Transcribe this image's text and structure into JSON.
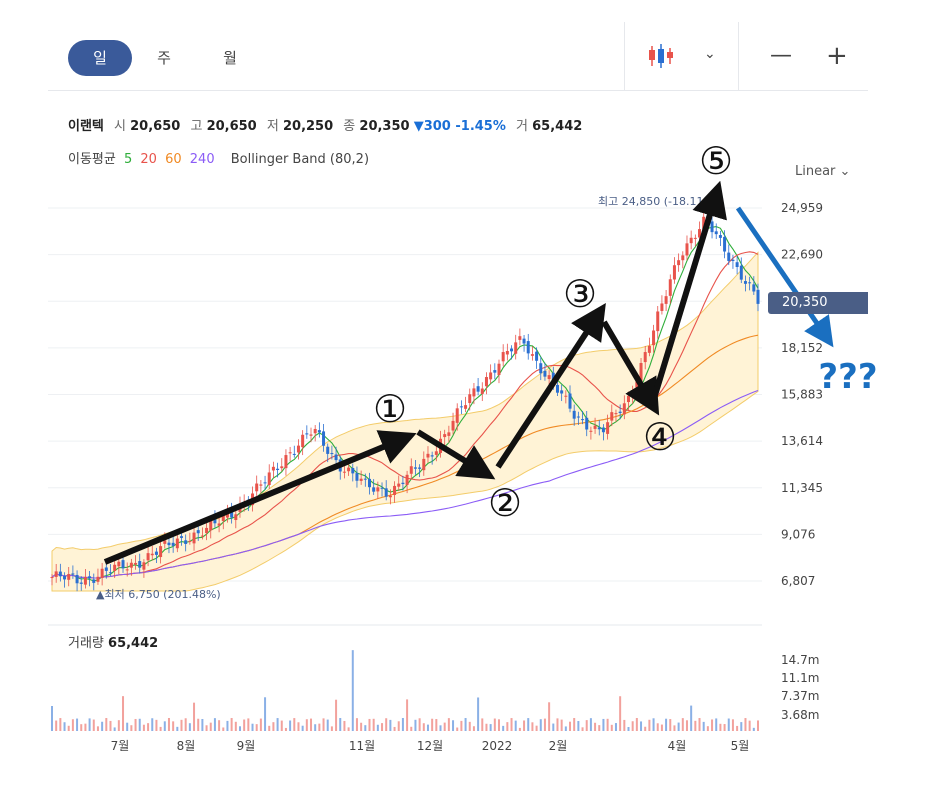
{
  "toolbar": {
    "tabs": [
      "일",
      "주",
      "월"
    ],
    "active_tab": "일",
    "chart_type_icon": "candlestick-icon",
    "minus_icon": "—",
    "plus_icon": "+"
  },
  "info": {
    "name": "이랜텍",
    "open_label": "시",
    "open": "20,650",
    "high_label": "고",
    "high": "20,650",
    "low_label": "저",
    "low": "20,250",
    "close_label": "종",
    "close": "20,350",
    "change": "▼300 -1.45%",
    "volume_label": "거",
    "volume": "65,442"
  },
  "indicators": {
    "ma_label": "이동평균",
    "ma_periods": [
      "5",
      "20",
      "60",
      "240"
    ],
    "ma_colors": [
      "#2fae3b",
      "#e8534b",
      "#f08a24",
      "#8b5cf6"
    ],
    "bollinger": "Bollinger Band (80,2)"
  },
  "scale_mode": "Linear",
  "current_price_tag": "20,350",
  "annotations": {
    "max_label": "최고 24,850 (-18.11%)",
    "min_label": "▲최저 6,750 (201.48%)",
    "waves": [
      "①",
      "②",
      "③",
      "④",
      "⑤"
    ],
    "question": "???"
  },
  "volume_panel": {
    "label": "거래량",
    "value": "65,442",
    "ticks": [
      "14.7m",
      "11.1m",
      "7.37m",
      "3.68m"
    ]
  },
  "colors": {
    "up": "#e8534b",
    "down": "#2a6fd1",
    "band_fill": "#fff3d6",
    "arrow_black": "#111111",
    "arrow_blue": "#1a6fc0"
  },
  "chart_data": {
    "type": "candlestick",
    "y_ticks": [
      "24,959",
      "22,690",
      "20,350",
      "18,152",
      "15,883",
      "13,614",
      "11,345",
      "9,076",
      "6,807"
    ],
    "ylim": [
      6807,
      24959
    ],
    "x_ticks": [
      "7월",
      "8월",
      "9월",
      "11월",
      "12월",
      "2022",
      "2월",
      "4월",
      "5월"
    ],
    "close_series_approx": [
      7000,
      6850,
      7200,
      7600,
      8200,
      8900,
      9300,
      10300,
      11400,
      13000,
      14100,
      12500,
      11400,
      11200,
      12300,
      13900,
      15800,
      17300,
      18600,
      16600,
      14900,
      14000,
      15600,
      18900,
      22800,
      24300,
      22500,
      20350
    ],
    "max": {
      "value": 24850,
      "text": "최고 24,850 (-18.11%)"
    },
    "min": {
      "value": 6750,
      "text": "최저 6,750 (201.48%)"
    },
    "last": 20350
  }
}
